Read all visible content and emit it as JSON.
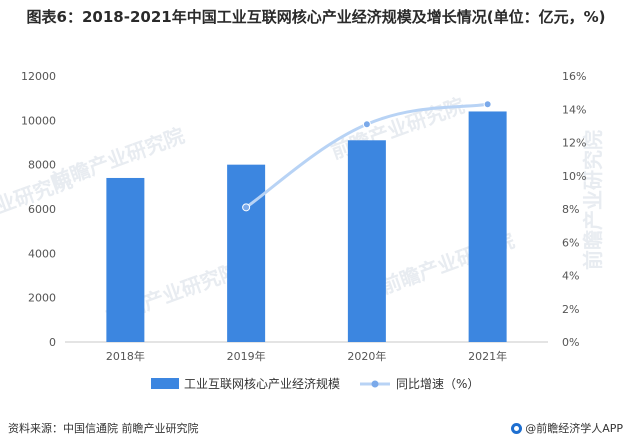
{
  "title": "图表6：2018-2021年中国工业互联网核心产业经济规模及增长情况(单位：亿元，%)",
  "source": "资料来源：中国信通院 前瞻产业研究院",
  "brand": "@前瞻经济学人APP",
  "watermark": "前瞻产业研究院",
  "colors": {
    "bar": "#3c86e0",
    "line": "#b8d3f5",
    "marker": "#7aa9ea",
    "axis": "#999999"
  },
  "chart_data": {
    "type": "bar",
    "categories": [
      "2018年",
      "2019年",
      "2020年",
      "2021年"
    ],
    "series": [
      {
        "name": "工业互联网核心产业经济规模",
        "type": "bar",
        "axis": "left",
        "values": [
          7400,
          8000,
          9100,
          10400
        ]
      },
      {
        "name": "同比增速（%）",
        "type": "line",
        "axis": "right",
        "values": [
          null,
          8.1,
          13.1,
          14.3
        ]
      }
    ],
    "y_left": {
      "ylim": [
        0,
        12000
      ],
      "ticks": [
        "0",
        "2000",
        "4000",
        "6000",
        "8000",
        "10000",
        "12000"
      ]
    },
    "y_right": {
      "ylim": [
        0,
        16
      ],
      "ticks": [
        "0%",
        "2%",
        "4%",
        "6%",
        "8%",
        "10%",
        "12%",
        "14%",
        "16%"
      ]
    },
    "legend": "bottom"
  }
}
